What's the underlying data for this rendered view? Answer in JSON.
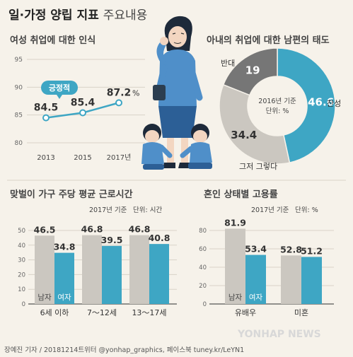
{
  "page": {
    "title": "일·가정 양립 지표",
    "subtitle": "주요내용",
    "footer": "장예진 기자 / 20181214트위터 @yonhap_graphics, 페이스북 tuney.kr/LeYN1",
    "brand": "YONHAP NEWS"
  },
  "colors": {
    "teal": "#3ea6c4",
    "gray": "#cbc7c0",
    "dark_gray": "#767676",
    "background": "#f6f2ea"
  },
  "chart_data": [
    {
      "type": "line",
      "title": "여성 취업에 대한 인식",
      "x": [
        "2013",
        "2015",
        "2017년"
      ],
      "values": [
        84.5,
        85.4,
        87.2
      ],
      "value_labels": [
        "84.5",
        "85.4",
        "87.2"
      ],
      "value_suffix": "%",
      "series": [
        {
          "name": "긍정적",
          "values": [
            84.5,
            85.4,
            87.2
          ]
        }
      ],
      "yticks": [
        "95",
        "90",
        "85",
        "80"
      ],
      "ylim": [
        80,
        95
      ],
      "grid": true
    },
    {
      "type": "pie",
      "title": "아내의 취업에 대한 남편의 태도",
      "note": "2016년 기준",
      "unit": "단위: %",
      "slices": [
        {
          "label": "찬성",
          "value": 46.6,
          "color": "#3ea6c4"
        },
        {
          "label": "그저 그렇다",
          "value": 34.4,
          "color": "#cbc7c0"
        },
        {
          "label": "반대",
          "value": 19.0,
          "color": "#767676"
        }
      ]
    },
    {
      "type": "bar",
      "title": "맞벌이 가구 주당 평균 근로시간",
      "note": "2017년 기준",
      "unit": "단위: 시간",
      "categories": [
        "6세 이하",
        "7～12세",
        "13～17세"
      ],
      "series": [
        {
          "name": "남자",
          "values": [
            46.5,
            46.8,
            46.8
          ],
          "color": "#cbc7c0"
        },
        {
          "name": "여자",
          "values": [
            34.8,
            39.5,
            40.8
          ],
          "color": "#3ea6c4"
        }
      ],
      "yticks": [
        "50",
        "40",
        "30",
        "20",
        "10",
        "0"
      ],
      "ylim": [
        0,
        50
      ]
    },
    {
      "type": "bar",
      "title": "혼인 상태별 고용률",
      "note": "2017년 기준",
      "unit": "단위: %",
      "categories": [
        "유배우",
        "미혼"
      ],
      "series": [
        {
          "name": "남자",
          "values": [
            81.9,
            52.8
          ],
          "color": "#cbc7c0"
        },
        {
          "name": "여자",
          "values": [
            53.4,
            51.2
          ],
          "color": "#3ea6c4"
        }
      ],
      "yticks": [
        "80",
        "60",
        "40",
        "20",
        "0"
      ],
      "ylim": [
        0,
        80
      ]
    }
  ]
}
